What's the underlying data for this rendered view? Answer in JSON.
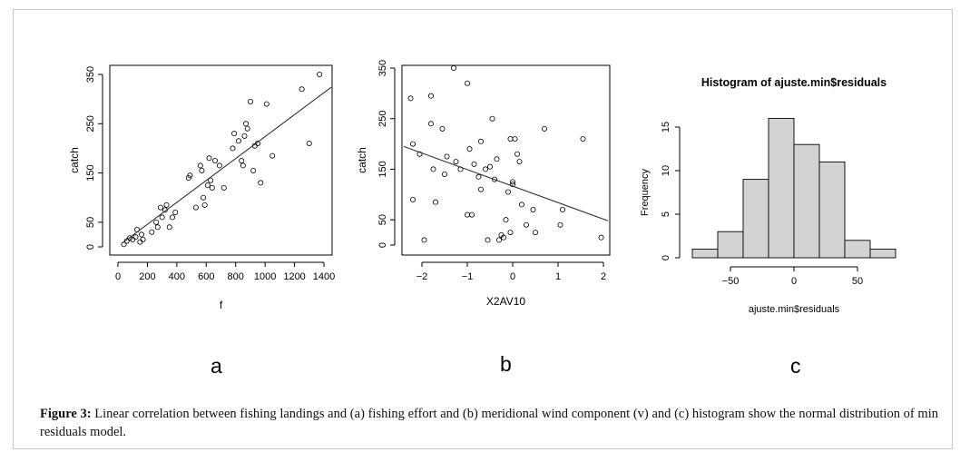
{
  "caption": {
    "label": "Figure 3:",
    "text": "Linear correlation between fishing landings and (a) fishing effort and (b) meridional wind component (v) and (c) histogram show the normal distribution of min residuals model."
  },
  "panel_letters": [
    "a",
    "b",
    "c"
  ],
  "chart_data": [
    {
      "type": "scatter",
      "panel": "a",
      "title": "",
      "xlabel": "f",
      "ylabel": "catch",
      "xlim": [
        0,
        1450
      ],
      "ylim": [
        -5,
        365
      ],
      "xticks": [
        0,
        200,
        400,
        600,
        800,
        1000,
        1200,
        1400
      ],
      "yticks": [
        0,
        50,
        150,
        250,
        350
      ],
      "grid": false,
      "points": [
        [
          40,
          5
        ],
        [
          60,
          12
        ],
        [
          80,
          18
        ],
        [
          100,
          15
        ],
        [
          120,
          20
        ],
        [
          130,
          35
        ],
        [
          150,
          10
        ],
        [
          160,
          25
        ],
        [
          170,
          15
        ],
        [
          230,
          30
        ],
        [
          260,
          50
        ],
        [
          270,
          40
        ],
        [
          290,
          80
        ],
        [
          300,
          60
        ],
        [
          320,
          75
        ],
        [
          330,
          85
        ],
        [
          350,
          40
        ],
        [
          370,
          60
        ],
        [
          390,
          70
        ],
        [
          480,
          140
        ],
        [
          490,
          145
        ],
        [
          530,
          80
        ],
        [
          560,
          165
        ],
        [
          570,
          155
        ],
        [
          580,
          100
        ],
        [
          590,
          85
        ],
        [
          610,
          125
        ],
        [
          620,
          180
        ],
        [
          630,
          135
        ],
        [
          640,
          120
        ],
        [
          660,
          175
        ],
        [
          690,
          165
        ],
        [
          720,
          120
        ],
        [
          780,
          200
        ],
        [
          790,
          230
        ],
        [
          820,
          215
        ],
        [
          840,
          175
        ],
        [
          850,
          165
        ],
        [
          860,
          225
        ],
        [
          870,
          250
        ],
        [
          880,
          240
        ],
        [
          900,
          295
        ],
        [
          920,
          155
        ],
        [
          930,
          205
        ],
        [
          950,
          210
        ],
        [
          970,
          130
        ],
        [
          1010,
          290
        ],
        [
          1050,
          185
        ],
        [
          1250,
          320
        ],
        [
          1300,
          210
        ],
        [
          1370,
          350
        ]
      ],
      "fit_line": {
        "x": [
          30,
          1450
        ],
        "y": [
          8,
          324
        ]
      }
    },
    {
      "type": "scatter",
      "panel": "b",
      "title": "",
      "xlabel": "X2AV10",
      "ylabel": "catch",
      "xlim": [
        -2.4,
        2.1
      ],
      "ylim": [
        -5,
        365
      ],
      "xticks": [
        -2,
        -1,
        0,
        1,
        2
      ],
      "yticks": [
        0,
        50,
        150,
        250,
        350
      ],
      "grid": false,
      "points": [
        [
          -2.25,
          290
        ],
        [
          -2.2,
          200
        ],
        [
          -2.2,
          90
        ],
        [
          -2.05,
          180
        ],
        [
          -1.95,
          10
        ],
        [
          -1.8,
          295
        ],
        [
          -1.8,
          240
        ],
        [
          -1.75,
          150
        ],
        [
          -1.7,
          85
        ],
        [
          -1.55,
          230
        ],
        [
          -1.5,
          140
        ],
        [
          -1.45,
          175
        ],
        [
          -1.3,
          350
        ],
        [
          -1.25,
          165
        ],
        [
          -1.15,
          150
        ],
        [
          -1.0,
          320
        ],
        [
          -1.0,
          60
        ],
        [
          -0.95,
          190
        ],
        [
          -0.9,
          60
        ],
        [
          -0.85,
          160
        ],
        [
          -0.75,
          135
        ],
        [
          -0.7,
          110
        ],
        [
          -0.7,
          205
        ],
        [
          -0.6,
          150
        ],
        [
          -0.55,
          10
        ],
        [
          -0.5,
          155
        ],
        [
          -0.45,
          250
        ],
        [
          -0.4,
          130
        ],
        [
          -0.35,
          170
        ],
        [
          -0.3,
          10
        ],
        [
          -0.25,
          20
        ],
        [
          -0.2,
          15
        ],
        [
          -0.15,
          50
        ],
        [
          -0.1,
          105
        ],
        [
          -0.05,
          210
        ],
        [
          0.0,
          125
        ],
        [
          0.05,
          210
        ],
        [
          0.1,
          180
        ],
        [
          0.15,
          165
        ],
        [
          0.2,
          80
        ],
        [
          0.3,
          40
        ],
        [
          0.45,
          70
        ],
        [
          0.5,
          25
        ],
        [
          0.7,
          230
        ],
        [
          1.05,
          40
        ],
        [
          1.1,
          70
        ],
        [
          1.55,
          210
        ],
        [
          1.95,
          15
        ],
        [
          0.0,
          120
        ],
        [
          -0.05,
          25
        ]
      ],
      "fit_line": {
        "x": [
          -2.4,
          2.1
        ],
        "y": [
          195,
          48
        ]
      }
    },
    {
      "type": "bar",
      "panel": "c",
      "title": "Histogram of ajuste.min$residuals",
      "xlabel": "ajuste.min$residuals",
      "ylabel": "Frequency",
      "bin_edges": [
        -80,
        -60,
        -40,
        -20,
        0,
        20,
        40,
        60,
        80
      ],
      "values": [
        1,
        3,
        9,
        16,
        13,
        11,
        2,
        1
      ],
      "xticks": [
        -50,
        0,
        50
      ],
      "yticks": [
        0,
        5,
        10,
        15
      ],
      "ylim": [
        0,
        17
      ],
      "bar_color": "#d3d3d3",
      "grid": false
    }
  ]
}
